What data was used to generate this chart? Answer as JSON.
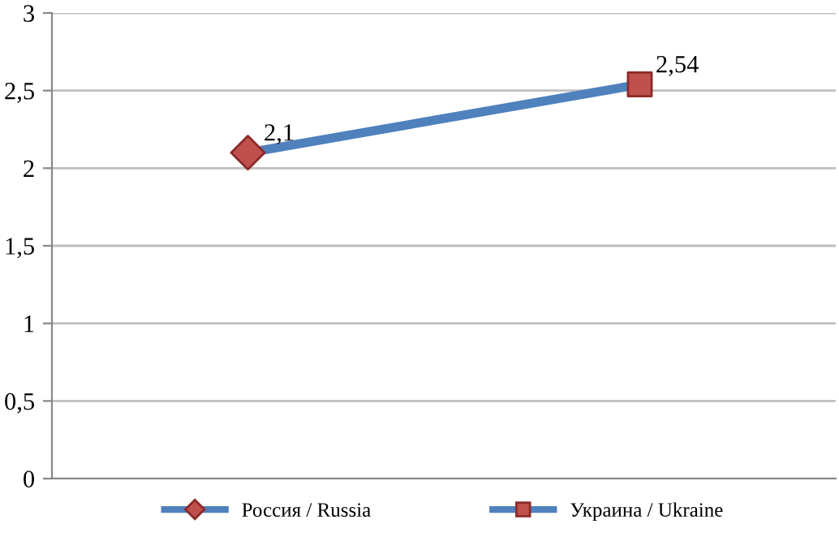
{
  "chart_data": {
    "type": "line",
    "categories": [
      null,
      null
    ],
    "series": [
      {
        "color": "#4f81bd",
        "values": [
          2.1,
          2.54
        ],
        "marker": "none",
        "value_labels": [
          "2,1",
          "2,54"
        ]
      },
      {
        "type": "scatter",
        "name": "Россия / Russia",
        "color": "#c0504d",
        "marker": "diamond",
        "values": [
          2.1,
          null
        ]
      },
      {
        "type": "scatter",
        "name": "Украина / Ukraine",
        "color": "#c0504d",
        "marker": "square",
        "values": [
          null,
          2.54
        ]
      }
    ],
    "ylim": [
      0,
      3
    ],
    "yticks": [
      0,
      {
        "value": 0.5,
        "label": "0,5"
      },
      1,
      {
        "value": 1.5,
        "label": "1,5"
      },
      2,
      {
        "value": 2.5,
        "label": "2,5"
      },
      3
    ],
    "tick_labels": "y",
    "grid": "y",
    "legend": "bottom"
  }
}
